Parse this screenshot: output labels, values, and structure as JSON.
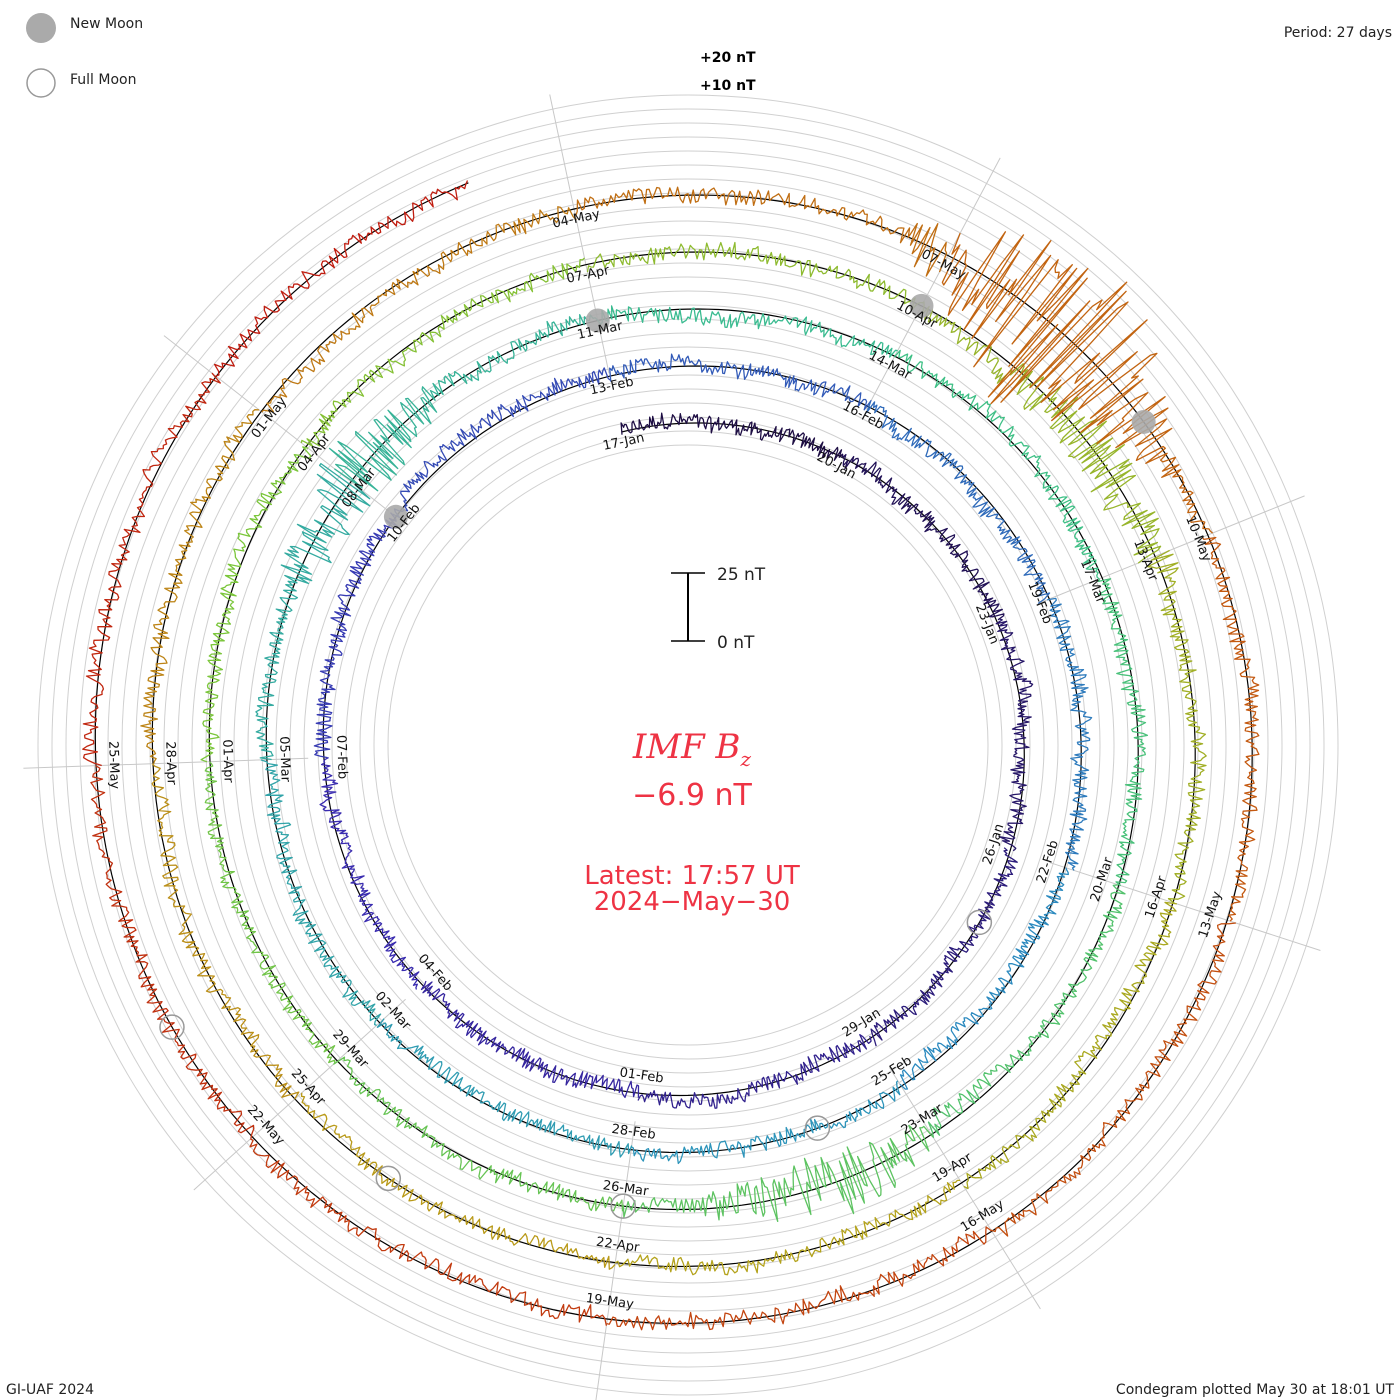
{
  "legend": {
    "new_moon": "New Moon",
    "full_moon": "Full Moon"
  },
  "period": "Period: 27 days",
  "ring_scale": {
    "plus20": "+20 nT",
    "plus10": "+10 nT"
  },
  "scale_bar": {
    "top": "25 nT",
    "bottom": "0 nT"
  },
  "center": {
    "title": "IMF B",
    "title_sub": "z",
    "value": "−6.9 nT",
    "latest": "Latest: 17:57 UT",
    "date": "2024−May−30"
  },
  "footer": {
    "left": "GI-UAF 2024",
    "right": "Condegram plotted May 30 at 18:01 UT"
  },
  "colors": {
    "accent": "#ee3344",
    "cycles": [
      "#1a0a3a",
      "#3a2ab0",
      "#2b8fc0",
      "#3cc08a",
      "#7cc63a",
      "#b8a01a",
      "#c45a10",
      "#c01a10"
    ]
  },
  "chart_data": {
    "type": "line",
    "title": "IMF Bz",
    "layout": "spiral condegram",
    "period_days": 27,
    "latest_value_nT": -6.9,
    "ring_range_nT": [
      -20,
      20
    ],
    "grid": true,
    "date_labels": [
      {
        "text": "17-Jan",
        "day": 0
      },
      {
        "text": "20-Jan",
        "day": 3
      },
      {
        "text": "23-Jan",
        "day": 6
      },
      {
        "text": "26-Jan",
        "day": 9
      },
      {
        "text": "29-Jan",
        "day": 12
      },
      {
        "text": "01-Feb",
        "day": 15
      },
      {
        "text": "04-Feb",
        "day": 18
      },
      {
        "text": "07-Feb",
        "day": 21
      },
      {
        "text": "10-Feb",
        "day": 24
      },
      {
        "text": "13-Feb",
        "day": 27
      },
      {
        "text": "16-Feb",
        "day": 30
      },
      {
        "text": "19-Feb",
        "day": 33
      },
      {
        "text": "22-Feb",
        "day": 36
      },
      {
        "text": "25-Feb",
        "day": 39
      },
      {
        "text": "28-Feb",
        "day": 42
      },
      {
        "text": "02-Mar",
        "day": 45
      },
      {
        "text": "05-Mar",
        "day": 48
      },
      {
        "text": "08-Mar",
        "day": 51
      },
      {
        "text": "11-Mar",
        "day": 54
      },
      {
        "text": "14-Mar",
        "day": 57
      },
      {
        "text": "17-Mar",
        "day": 60
      },
      {
        "text": "20-Mar",
        "day": 63
      },
      {
        "text": "23-Mar",
        "day": 66
      },
      {
        "text": "26-Mar",
        "day": 69
      },
      {
        "text": "29-Mar",
        "day": 72
      },
      {
        "text": "01-Apr",
        "day": 75
      },
      {
        "text": "04-Apr",
        "day": 78
      },
      {
        "text": "07-Apr",
        "day": 81
      },
      {
        "text": "10-Apr",
        "day": 84
      },
      {
        "text": "13-Apr",
        "day": 87
      },
      {
        "text": "16-Apr",
        "day": 90
      },
      {
        "text": "19-Apr",
        "day": 93
      },
      {
        "text": "22-Apr",
        "day": 96
      },
      {
        "text": "25-Apr",
        "day": 99
      },
      {
        "text": "28-Apr",
        "day": 102
      },
      {
        "text": "01-May",
        "day": 105
      },
      {
        "text": "04-May",
        "day": 108
      },
      {
        "text": "07-May",
        "day": 111
      },
      {
        "text": "10-May",
        "day": 114
      },
      {
        "text": "13-May",
        "day": 117
      },
      {
        "text": "16-May",
        "day": 120
      },
      {
        "text": "19-May",
        "day": 123
      },
      {
        "text": "22-May",
        "day": 126
      },
      {
        "text": "25-May",
        "day": 129
      }
    ],
    "new_moons_day": [
      24,
      54,
      84,
      113
    ],
    "full_moons_day": [
      10,
      40,
      69,
      98,
      127
    ],
    "disturbances": [
      {
        "day": 112,
        "amplitude_nT": 40
      },
      {
        "day": 51,
        "amplitude_nT": 14
      },
      {
        "day": 67,
        "amplitude_nT": 12
      },
      {
        "day": 86,
        "amplitude_nT": 10
      }
    ],
    "series": [
      {
        "start_day": 0,
        "end_day": 27
      },
      {
        "start_day": 27,
        "end_day": 54
      },
      {
        "start_day": 54,
        "end_day": 81
      },
      {
        "start_day": 81,
        "end_day": 108
      },
      {
        "start_day": 108,
        "end_day": 134.3
      }
    ]
  }
}
